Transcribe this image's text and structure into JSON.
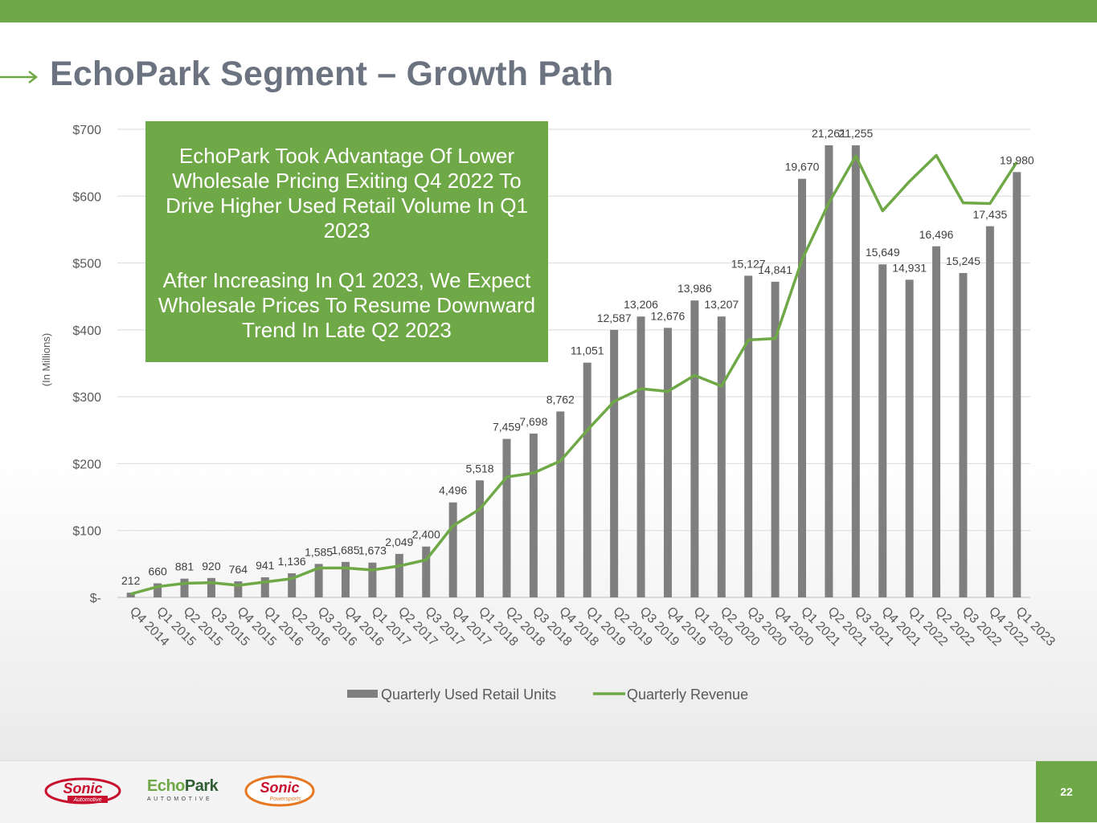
{
  "page": {
    "title": "EchoPark Segment – Growth Path",
    "page_number": "22",
    "accent_color": "#6fa846",
    "callout": {
      "paragraph1": "EchoPark Took Advantage Of Lower Wholesale Pricing Exiting Q4 2022 To Drive Higher Used Retail Volume In Q1 2023",
      "paragraph2": "After Increasing In Q1 2023, We Expect Wholesale Prices To Resume Downward Trend In Late Q2 2023"
    },
    "logos": {
      "sonic_automotive": {
        "word": "Sonic",
        "sub": "Automotive"
      },
      "echopark": {
        "word_a": "Echo",
        "word_b": "Park",
        "sub": "AUTOMOTIVE"
      },
      "sonic_powersports": {
        "word": "Sonic",
        "sub": "Powersports"
      }
    }
  },
  "chart_data": {
    "type": "bar",
    "ylabel": "(In Millions)",
    "ylim": [
      0,
      700
    ],
    "yticks": [
      0,
      100,
      200,
      300,
      400,
      500,
      600,
      700
    ],
    "ytick_labels": [
      "$-",
      "$100",
      "$200",
      "$300",
      "$400",
      "$500",
      "$600",
      "$700"
    ],
    "grid": true,
    "legend_position": "bottom",
    "categories": [
      "Q4 2014",
      "Q1 2015",
      "Q2 2015",
      "Q3 2015",
      "Q4 2015",
      "Q1 2016",
      "Q2 2016",
      "Q3 2016",
      "Q4 2016",
      "Q1 2017",
      "Q2 2017",
      "Q3 2017",
      "Q4 2017",
      "Q1 2018",
      "Q2 2018",
      "Q3 2018",
      "Q4 2018",
      "Q1 2019",
      "Q2 2019",
      "Q3 2019",
      "Q4 2019",
      "Q1 2020",
      "Q2 2020",
      "Q3 2020",
      "Q4 2020",
      "Q1 2021",
      "Q2 2021",
      "Q3 2021",
      "Q4 2021",
      "Q1 2022",
      "Q2 2022",
      "Q3 2022",
      "Q4 2022",
      "Q1 2023"
    ],
    "series": [
      {
        "name": "Quarterly Used Retail Units",
        "type": "bar",
        "color": "#7f7f7f",
        "units": [
          212,
          660,
          881,
          920,
          764,
          941,
          1136,
          1585,
          1685,
          1673,
          2049,
          2400,
          4496,
          5518,
          7459,
          7698,
          8762,
          11051,
          12587,
          13206,
          12676,
          13986,
          13207,
          15127,
          14841,
          19670,
          21261,
          21255,
          15649,
          14931,
          16496,
          15245,
          17435,
          19980
        ],
        "labels": [
          "212",
          "660",
          "881",
          "920",
          "764",
          "941",
          "1,136",
          "1,585",
          "1,685",
          "1,673",
          "2,049",
          "2,400",
          "4,496",
          "5,518",
          "7,459",
          "7,698",
          "8,762",
          "11,051",
          "12,587",
          "13,206",
          "12,676",
          "13,986",
          "13,207",
          "15,127",
          "14,841",
          "19,670",
          "21,261",
          "21,255",
          "15,649",
          "14,931",
          "16,496",
          "15,245",
          "17,435",
          "19,980"
        ],
        "bar_heights_in_axis_units": [
          7,
          21,
          28,
          29,
          24,
          30,
          36,
          50,
          53,
          52,
          65,
          76,
          142,
          175,
          237,
          245,
          278,
          351,
          400,
          420,
          403,
          444,
          420,
          481,
          472,
          626,
          676,
          676,
          498,
          475,
          525,
          485,
          555,
          636
        ]
      },
      {
        "name": "Quarterly Revenue",
        "type": "line",
        "color": "#6fa846",
        "values": [
          5,
          16,
          21,
          22,
          18,
          23,
          28,
          44,
          44,
          41,
          47,
          56,
          107,
          132,
          180,
          186,
          204,
          250,
          293,
          312,
          308,
          332,
          316,
          385,
          387,
          505,
          590,
          660,
          578,
          622,
          661,
          590,
          589,
          651
        ]
      }
    ]
  }
}
